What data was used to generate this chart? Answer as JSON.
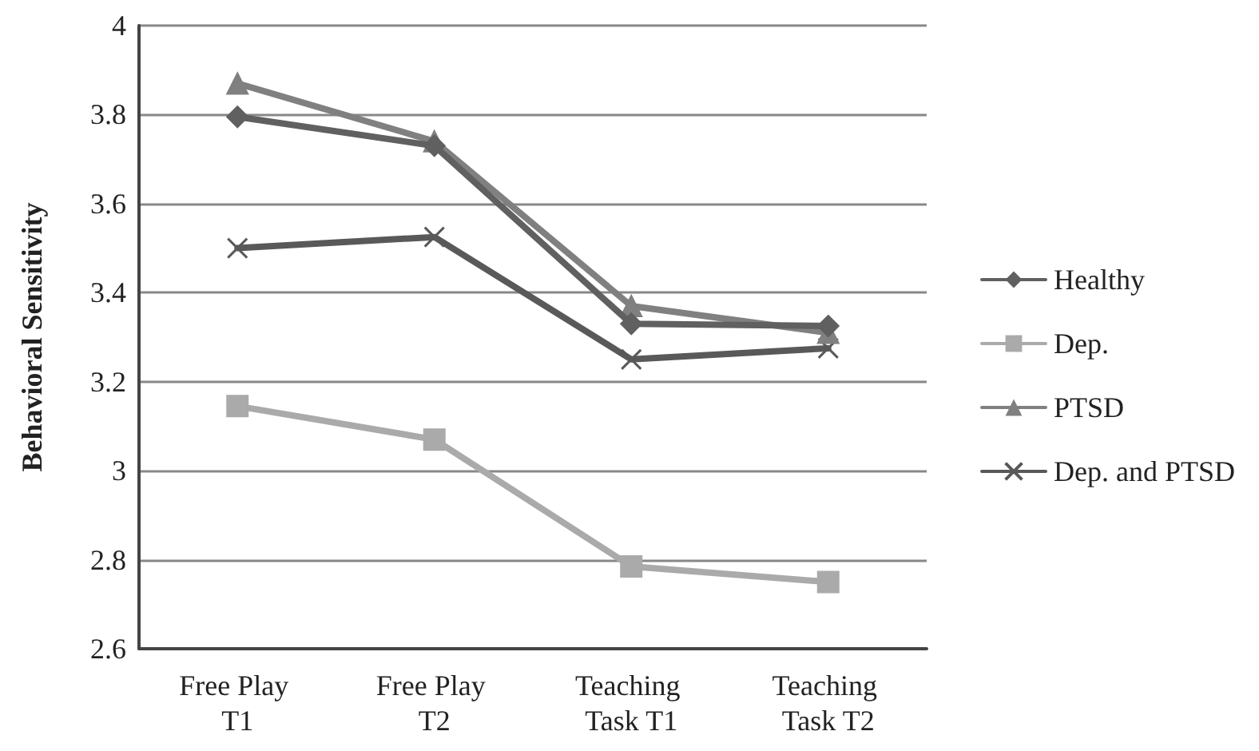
{
  "chart_data": {
    "type": "line",
    "ylabel": "Behavioral Sensitivity",
    "categories": [
      "Free Play T1",
      "Free Play T2",
      "Teaching Task T1",
      "Teaching Task T2"
    ],
    "series": [
      {
        "name": "Healthy",
        "color": "#606060",
        "marker": "diamond",
        "values": [
          3.795,
          3.73,
          3.33,
          3.325
        ]
      },
      {
        "name": "Dep.",
        "color": "#aaaaaa",
        "marker": "square",
        "values": [
          3.145,
          3.07,
          2.785,
          2.75
        ]
      },
      {
        "name": "PTSD",
        "color": "#808080",
        "marker": "triangle",
        "values": [
          3.87,
          3.74,
          3.37,
          3.31
        ]
      },
      {
        "name": "Dep. and PTSD",
        "color": "#595959",
        "marker": "cross",
        "values": [
          3.5,
          3.525,
          3.25,
          3.275
        ]
      }
    ],
    "ylim": [
      2.6,
      4
    ],
    "yticks": [
      2.6,
      2.8,
      3,
      3.2,
      3.4,
      3.6,
      3.8,
      4
    ],
    "grid": "y",
    "legend": "right"
  }
}
